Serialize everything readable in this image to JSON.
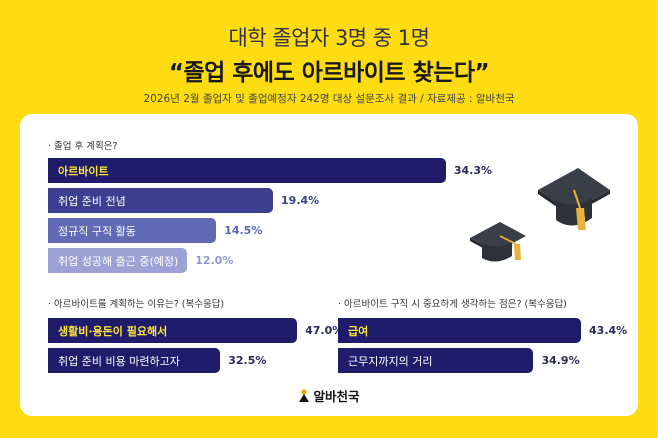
{
  "header": {
    "title_line1": "대학 졸업자 3명 중 1명",
    "title_line2": "“졸업 후에도 아르바이트 찾는다”",
    "subtitle": "2026년 2월 졸업자 및 졸업예정자 242명 대상 설문조사 결과 / 자료제공 : 알바천국"
  },
  "chart_data": [
    {
      "type": "bar",
      "orientation": "horizontal",
      "title": "· 졸업 후 계획은?",
      "categories": [
        "아르바이트",
        "취업 준비 전념",
        "정규직 구직 활동",
        "취업 성공해 출근 중(예정)"
      ],
      "values": [
        34.3,
        19.4,
        14.5,
        12.0
      ],
      "value_labels": [
        "34.3%",
        "19.4%",
        "14.5%",
        "12.0%"
      ],
      "colors": [
        "#1f1d6b",
        "#3c3f8f",
        "#6269b5",
        "#9ca2d6"
      ]
    },
    {
      "type": "bar",
      "orientation": "horizontal",
      "title": "· 아르바이트를 계획하는 이유는? (복수응답)",
      "categories": [
        "생활비·용돈이 필요해서",
        "취업 준비 비용 마련하고자"
      ],
      "values": [
        47.0,
        32.5
      ],
      "value_labels": [
        "47.0%",
        "32.5%"
      ],
      "colors": [
        "#1f1d6b",
        "#1f1d6b"
      ]
    },
    {
      "type": "bar",
      "orientation": "horizontal",
      "title": "· 아르바이트 구직 시 중요하게 생각하는 점은? (복수응답)",
      "categories": [
        "급여",
        "근무지까지의 거리"
      ],
      "values": [
        43.4,
        34.9
      ],
      "value_labels": [
        "43.4%",
        "34.9%"
      ],
      "colors": [
        "#1f1d6b",
        "#1f1d6b"
      ]
    }
  ],
  "footer": {
    "logo_text": "알바천국"
  },
  "colors": {
    "background": "#fddc12",
    "highlight_text": "#ffe33a"
  },
  "icons": [
    "graduation-cap-icon",
    "graduation-cap-icon",
    "albacheonguk-logo-icon"
  ]
}
